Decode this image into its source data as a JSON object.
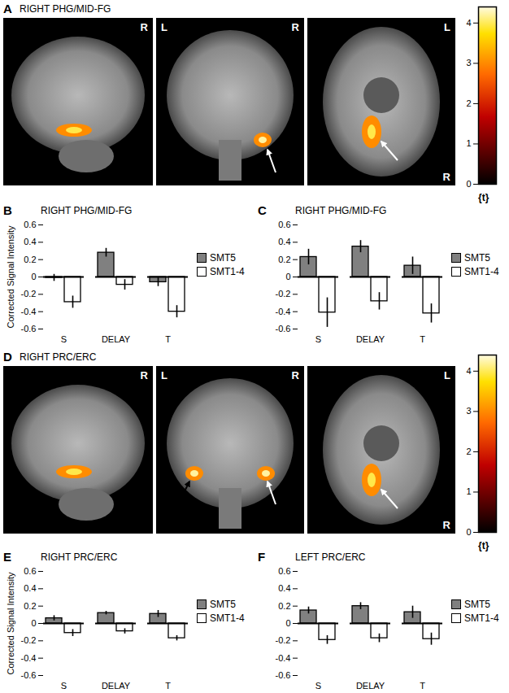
{
  "chart_data": [
    {
      "type": "bar",
      "panel": "B",
      "title": "RIGHT PHG/MID-FG",
      "y_label": "Corrected Signal Intensity",
      "categories": [
        "S",
        "DELAY",
        "T"
      ],
      "series": [
        {
          "name": "SMT5",
          "color": "#808080",
          "values": [
            -0.01,
            0.28,
            -0.06
          ],
          "errors": [
            0.04,
            0.05,
            0.05
          ]
        },
        {
          "name": "SMT1-4",
          "color": "#ffffff",
          "values": [
            -0.29,
            -0.09,
            -0.4
          ],
          "errors": [
            0.07,
            0.06,
            0.07
          ]
        }
      ],
      "ylim": [
        -0.6,
        0.6
      ],
      "yticks": [
        -0.6,
        -0.4,
        -0.2,
        0,
        0.2,
        0.4,
        0.6
      ],
      "legend": "right"
    },
    {
      "type": "bar",
      "panel": "C",
      "title": "RIGHT PHG/MID-FG",
      "categories": [
        "S",
        "DELAY",
        "T"
      ],
      "series": [
        {
          "name": "SMT5",
          "color": "#808080",
          "values": [
            0.23,
            0.35,
            0.13
          ],
          "errors": [
            0.09,
            0.07,
            0.1
          ]
        },
        {
          "name": "SMT1-4",
          "color": "#ffffff",
          "values": [
            -0.41,
            -0.28,
            -0.42
          ],
          "errors": [
            0.17,
            0.1,
            0.11
          ]
        }
      ],
      "ylim": [
        -0.6,
        0.6
      ],
      "yticks": [
        -0.6,
        -0.4,
        -0.2,
        0,
        0.2,
        0.4,
        0.6
      ],
      "legend": "right"
    },
    {
      "type": "bar",
      "panel": "E",
      "title": "RIGHT PRC/ERC",
      "y_label": "Corrected Signal Intensity",
      "categories": [
        "S",
        "DELAY",
        "T"
      ],
      "series": [
        {
          "name": "SMT5",
          "color": "#808080",
          "values": [
            0.06,
            0.12,
            0.11
          ],
          "errors": [
            0.03,
            0.02,
            0.04
          ]
        },
        {
          "name": "SMT1-4",
          "color": "#ffffff",
          "values": [
            -0.11,
            -0.09,
            -0.17
          ],
          "errors": [
            0.04,
            0.03,
            0.03
          ]
        }
      ],
      "ylim": [
        -0.6,
        0.6
      ],
      "yticks": [
        -0.6,
        -0.4,
        -0.2,
        0,
        0.2,
        0.4,
        0.6
      ],
      "legend": "right"
    },
    {
      "type": "bar",
      "panel": "F",
      "title": "LEFT PRC/ERC",
      "categories": [
        "S",
        "DELAY",
        "T"
      ],
      "series": [
        {
          "name": "SMT5",
          "color": "#808080",
          "values": [
            0.15,
            0.2,
            0.13
          ],
          "errors": [
            0.04,
            0.04,
            0.07
          ]
        },
        {
          "name": "SMT1-4",
          "color": "#ffffff",
          "values": [
            -0.19,
            -0.17,
            -0.18
          ],
          "errors": [
            0.05,
            0.05,
            0.07
          ]
        }
      ],
      "ylim": [
        -0.6,
        0.6
      ],
      "yticks": [
        -0.6,
        -0.4,
        -0.2,
        0,
        0.2,
        0.4,
        0.6
      ],
      "legend": "right"
    }
  ],
  "image_panels": [
    {
      "panel": "A",
      "title": "RIGHT PHG/MID-FG",
      "views": [
        {
          "labels": [
            "R"
          ]
        },
        {
          "labels": [
            "L",
            "R"
          ]
        },
        {
          "labels": [
            "L",
            "R"
          ]
        }
      ],
      "colorbar": {
        "range": [
          0,
          4.4
        ],
        "ticks": [
          0,
          1,
          2,
          3,
          4
        ],
        "label": "{t}"
      }
    },
    {
      "panel": "D",
      "title": "RIGHT PRC/ERC",
      "views": [
        {
          "labels": [
            "R"
          ]
        },
        {
          "labels": [
            "L",
            "R"
          ]
        },
        {
          "labels": [
            "L",
            "R"
          ]
        }
      ],
      "colorbar": {
        "range": [
          0,
          4.4
        ],
        "ticks": [
          0,
          1,
          2,
          3,
          4
        ],
        "label": "{t}"
      }
    }
  ]
}
